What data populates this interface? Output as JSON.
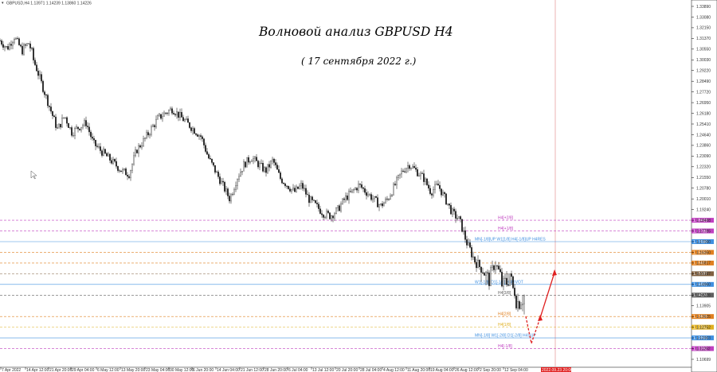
{
  "header": {
    "symbol_line": "GBPUSD,H4  1.13971 1.14239 1.13860 1.14226"
  },
  "overlay": {
    "title": "Волновой анализ GBPUSD H4",
    "subtitle": "( 17 сентября 2022 г.)"
  },
  "colors": {
    "candle": "#000000",
    "axis_bg": "#ffffff",
    "vline": "#e8a0a0",
    "arrow": "#e02020",
    "date_marker": "#e02020"
  },
  "chart_data": {
    "type": "candlestick",
    "symbol": "GBPUSD",
    "timeframe": "H4",
    "ylim": [
      1.1,
      1.34
    ],
    "y_ticks": [
      "1.33890",
      "1.33080",
      "1.32150",
      "1.31370",
      "1.30550",
      "1.30030",
      "1.29220",
      "1.28490",
      "1.27720",
      "1.26950",
      "1.26180",
      "1.25410",
      "1.24640",
      "1.23860",
      "1.23090",
      "1.22320",
      "1.21550",
      "1.20780",
      "1.20010",
      "1.19240",
      "1.18498",
      "1.17785",
      "1.17090",
      "1.16350",
      "1.15817",
      "1.15187",
      "1.14960",
      "1.14226",
      "1.13905",
      "1.13635",
      "1.12752",
      "1.12003",
      "1.11292",
      "1.10699"
    ],
    "x_ticks": [
      "7 Apr 2022",
      "14 Apr 12:00",
      "21 Apr 20:00",
      "29 Apr 04:00",
      "6 May 12:00",
      "13 May 20:00",
      "23 May 04:00",
      "30 May 12:00",
      "6 Jun 20:00",
      "14 Jun 04:00",
      "21 Jun 12:00",
      "28 Jun 20:00",
      "6 Jul 04:00",
      "13 Jul 12:00",
      "20 Jul 20:00",
      "28 Jul 04:00",
      "4 Aug 12:00",
      "11 Aug 20:00",
      "19 Aug 04:00",
      "26 Aug 12:00",
      "2 Sep 20:00",
      "12 Sep 04:00",
      "2022.09.23 20:00"
    ],
    "close_path": [
      1.312,
      1.306,
      1.315,
      1.305,
      1.31,
      1.295,
      1.28,
      1.265,
      1.25,
      1.26,
      1.248,
      1.252,
      1.255,
      1.24,
      1.235,
      1.23,
      1.225,
      1.22,
      1.218,
      1.235,
      1.242,
      1.25,
      1.258,
      1.262,
      1.265,
      1.26,
      1.255,
      1.25,
      1.245,
      1.23,
      1.22,
      1.21,
      1.2,
      1.215,
      1.225,
      1.23,
      1.225,
      1.22,
      1.228,
      1.215,
      1.21,
      1.205,
      1.21,
      1.2,
      1.195,
      1.19,
      1.188,
      1.192,
      1.2,
      1.205,
      1.21,
      1.205,
      1.2,
      1.195,
      1.2,
      1.21,
      1.22,
      1.225,
      1.22,
      1.215,
      1.205,
      1.21,
      1.2,
      1.19,
      1.185,
      1.17,
      1.16,
      1.155,
      1.15,
      1.158,
      1.148,
      1.152,
      1.14,
      1.142
    ],
    "levels": [
      {
        "label": "H4[+2/8]",
        "price": 1.18498,
        "color": "#c040c0",
        "tag": "1.18498",
        "dash": true
      },
      {
        "label": "H4[+1/8]",
        "price": 1.17785,
        "color": "#c040c0",
        "tag": "1.17785",
        "dash": true
      },
      {
        "label": "MN[-1/8]UP W1[1/8] H4[-1/8]UP H4RES",
        "price": 1.1709,
        "color": "#4090e0",
        "tag": "1.17090",
        "dash": false
      },
      {
        "label": "",
        "price": 1.1635,
        "color": "#e08020",
        "tag": "1.16350",
        "dash": true
      },
      {
        "label": "",
        "price": 1.15817,
        "color": "#e08020",
        "tag": "1.15817",
        "dash": true
      },
      {
        "label": "",
        "price": 1.15187,
        "color": "#806040",
        "tag": "1.15187",
        "dash": true
      },
      {
        "label": "W1[-1/8] D1[-1/8] H4PIVOT",
        "price": 1.1496,
        "color": "#4090e0",
        "tag": "1.14960",
        "dash": false
      },
      {
        "label": "H4[3/8]",
        "price": 1.14226,
        "color": "#606060",
        "tag": "1.14226",
        "dash": true
      },
      {
        "label": "H4[2/8]",
        "price": 1.13635,
        "color": "#e08020",
        "tag": "1.13635",
        "dash": true
      },
      {
        "label": "H4[1/8]",
        "price": 1.12752,
        "color": "#e0b020",
        "tag": "1.12752",
        "dash": true
      },
      {
        "label": "MN[-1/8] W1[-2/8] D1[-2/8] H4SUP",
        "price": 1.12003,
        "color": "#4090e0",
        "tag": "1.12003",
        "dash": false
      },
      {
        "label": "H4[-1/8]",
        "price": 1.11292,
        "color": "#c040c0",
        "tag": "1.11292",
        "dash": true
      }
    ]
  }
}
